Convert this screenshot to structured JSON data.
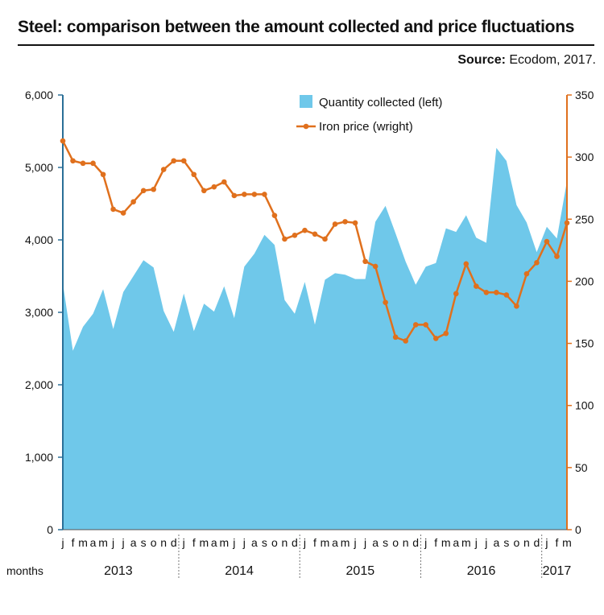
{
  "title": "Steel: comparison between the amount collected and price fluctuations",
  "source_label": "Source:",
  "source_text": "Ecodom, 2017.",
  "chart_data": {
    "type": "area",
    "x_axis_label": "months",
    "month_labels": [
      "j",
      "f",
      "m",
      "a",
      "m",
      "j",
      "j",
      "a",
      "s",
      "o",
      "n",
      "d",
      "j",
      "f",
      "m",
      "a",
      "m",
      "j",
      "j",
      "a",
      "s",
      "o",
      "n",
      "d",
      "j",
      "f",
      "m",
      "a",
      "m",
      "j",
      "j",
      "a",
      "s",
      "o",
      "n",
      "d",
      "j",
      "f",
      "m",
      "a",
      "m",
      "j",
      "j",
      "a",
      "s",
      "o",
      "n",
      "d",
      "j",
      "f",
      "m"
    ],
    "years": [
      {
        "label": "2013",
        "start": 0,
        "end": 11
      },
      {
        "label": "2014",
        "start": 12,
        "end": 23
      },
      {
        "label": "2015",
        "start": 24,
        "end": 35
      },
      {
        "label": "2016",
        "start": 36,
        "end": 47
      },
      {
        "label": "2017",
        "start": 48,
        "end": 50
      }
    ],
    "left_axis": {
      "min": 0,
      "max": 6000,
      "ticks": [
        "0",
        "1,000",
        "2,000",
        "3,000",
        "4,000",
        "5,000",
        "6,000"
      ],
      "tick_values": [
        0,
        1000,
        2000,
        3000,
        4000,
        5000,
        6000
      ]
    },
    "right_axis": {
      "min": 0,
      "max": 350,
      "ticks": [
        "0",
        "50",
        "100",
        "150",
        "200",
        "250",
        "300",
        "350"
      ],
      "tick_values": [
        0,
        50,
        100,
        150,
        200,
        250,
        300,
        350
      ]
    },
    "legend_position": "top-center",
    "series": [
      {
        "name": "Quantity collected (left)",
        "type": "area",
        "axis": "left",
        "color": "#6fc8ea",
        "values": [
          3400,
          2470,
          2800,
          2980,
          3320,
          2770,
          3280,
          3500,
          3720,
          3620,
          3020,
          2730,
          3260,
          2740,
          3120,
          3010,
          3360,
          2920,
          3630,
          3810,
          4070,
          3930,
          3170,
          2980,
          3420,
          2830,
          3450,
          3540,
          3520,
          3460,
          3460,
          4250,
          4470,
          4090,
          3700,
          3380,
          3630,
          3680,
          4160,
          4110,
          4340,
          4030,
          3960,
          5270,
          5090,
          4480,
          4240,
          3830,
          4180,
          4020,
          4810
        ]
      },
      {
        "name": "Iron price (wright)",
        "type": "line",
        "axis": "right",
        "color": "#e0701d",
        "values": [
          313,
          297,
          295,
          295,
          286,
          258,
          255,
          264,
          273,
          274,
          290,
          297,
          297,
          286,
          273,
          276,
          280,
          269,
          270,
          270,
          270,
          253,
          234,
          237,
          241,
          238,
          234,
          246,
          248,
          247,
          216,
          212,
          183,
          155,
          152,
          165,
          165,
          154,
          158,
          190,
          214,
          196,
          191,
          191,
          189,
          180,
          206,
          215,
          232,
          220,
          247
        ]
      }
    ]
  }
}
